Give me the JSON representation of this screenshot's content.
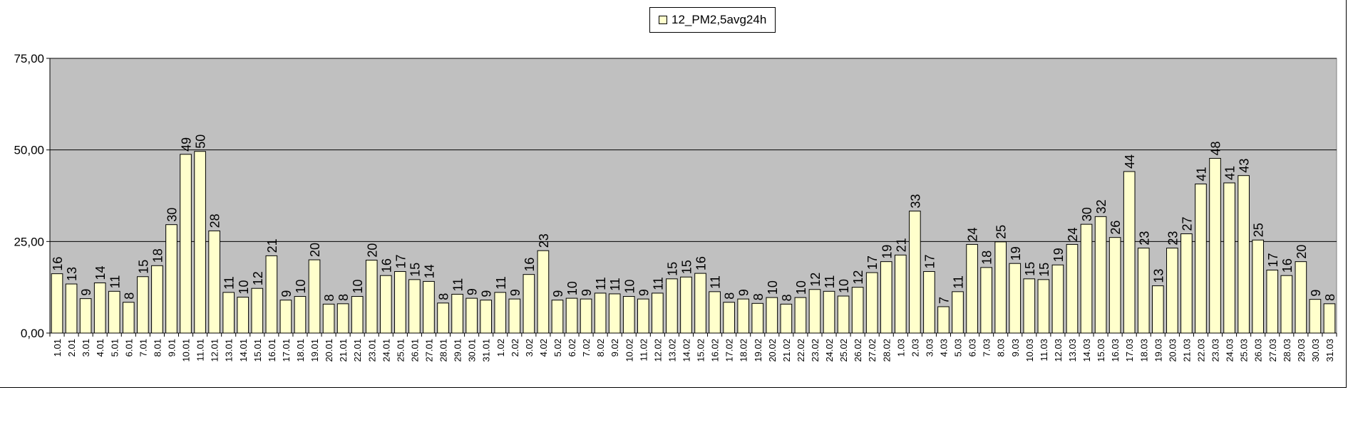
{
  "chart_data": {
    "type": "bar",
    "categories": [
      "1.01",
      "2.01",
      "3.01",
      "4.01",
      "5.01",
      "6.01",
      "7.01",
      "8.01",
      "9.01",
      "10.01",
      "11.01",
      "12.01",
      "13.01",
      "14.01",
      "15.01",
      "16.01",
      "17.01",
      "18.01",
      "19.01",
      "20.01",
      "21.01",
      "22.01",
      "23.01",
      "24.01",
      "25.01",
      "26.01",
      "27.01",
      "28.01",
      "29.01",
      "30.01",
      "31.01",
      "1.02",
      "2.02",
      "3.02",
      "4.02",
      "5.02",
      "6.02",
      "7.02",
      "8.02",
      "9.02",
      "10.02",
      "11.02",
      "12.02",
      "13.02",
      "14.02",
      "15.02",
      "16.02",
      "17.02",
      "18.02",
      "19.02",
      "20.02",
      "21.02",
      "22.02",
      "23.02",
      "24.02",
      "25.02",
      "26.02",
      "27.02",
      "28.02",
      "1.03",
      "2.03",
      "3.03",
      "4.03",
      "5.03",
      "6.03",
      "7.03",
      "8.03",
      "9.03",
      "10.03",
      "11.03",
      "12.03",
      "13.03",
      "14.03",
      "15.03",
      "16.03",
      "17.03",
      "18.03",
      "19.03",
      "20.03",
      "21.03",
      "22.03",
      "23.03",
      "24.03",
      "25.03",
      "26.03",
      "27.03",
      "28.03",
      "29.03",
      "30.03",
      "31.03"
    ],
    "series": [
      {
        "name": "12_PM2,5avg24h",
        "color": "#ffffcc",
        "values": [
          16.2,
          13.4,
          9.4,
          13.7,
          11.4,
          8.4,
          15.4,
          18.4,
          29.6,
          48.8,
          49.6,
          27.9,
          11.1,
          9.8,
          12.2,
          21.1,
          9.0,
          10.0,
          20.0,
          7.9,
          8.0,
          10.0,
          19.9,
          15.7,
          16.8,
          14.6,
          14.1,
          8.2,
          10.6,
          9.5,
          9.0,
          11.1,
          9.3,
          16.0,
          22.5,
          9.0,
          9.5,
          9.3,
          10.9,
          10.7,
          10.0,
          9.3,
          10.9,
          14.8,
          15.3,
          16.3,
          11.3,
          8.4,
          9.3,
          8.1,
          9.7,
          7.9,
          9.7,
          11.9,
          11.4,
          10.1,
          12.5,
          16.5,
          19.5,
          21.3,
          33.3,
          16.8,
          7.2,
          11.3,
          24.2,
          17.9,
          24.9,
          19.0,
          14.8,
          14.6,
          18.6,
          24.2,
          29.7,
          31.8,
          26.1,
          44.1,
          23.2,
          12.9,
          23.2,
          27.1,
          40.7,
          47.7,
          41.0,
          43.0,
          25.4,
          17.2,
          15.7,
          19.5,
          9.2,
          8.0
        ]
      }
    ],
    "data_labels": [
      "16",
      "13",
      "9",
      "14",
      "11",
      "8",
      "15",
      "18",
      "30",
      "49",
      "50",
      "28",
      "11",
      "10",
      "12",
      "21",
      "9",
      "10",
      "20",
      "8",
      "8",
      "10",
      "20",
      "16",
      "17",
      "15",
      "14",
      "8",
      "11",
      "9",
      "9",
      "11",
      "9",
      "16",
      "23",
      "9",
      "10",
      "9",
      "11",
      "11",
      "10",
      "9",
      "11",
      "15",
      "15",
      "16",
      "11",
      "8",
      "9",
      "8",
      "10",
      "8",
      "10",
      "12",
      "11",
      "10",
      "12",
      "17",
      "19",
      "21",
      "33",
      "17",
      "7",
      "11",
      "24",
      "18",
      "25",
      "19",
      "15",
      "15",
      "19",
      "24",
      "30",
      "32",
      "26",
      "44",
      "23",
      "13",
      "23",
      "27",
      "41",
      "48",
      "41",
      "43",
      "25",
      "17",
      "16",
      "20",
      "9",
      "8"
    ],
    "y_ticks": [
      "0,00",
      "25,00",
      "50,00",
      "75,00"
    ],
    "y_tick_values": [
      0,
      25,
      50,
      75
    ],
    "ylim": [
      0,
      75
    ],
    "grid": true,
    "legend_position": "top-center",
    "plot_background": "#c0c0c0",
    "title": "",
    "xlabel": "",
    "ylabel": ""
  }
}
